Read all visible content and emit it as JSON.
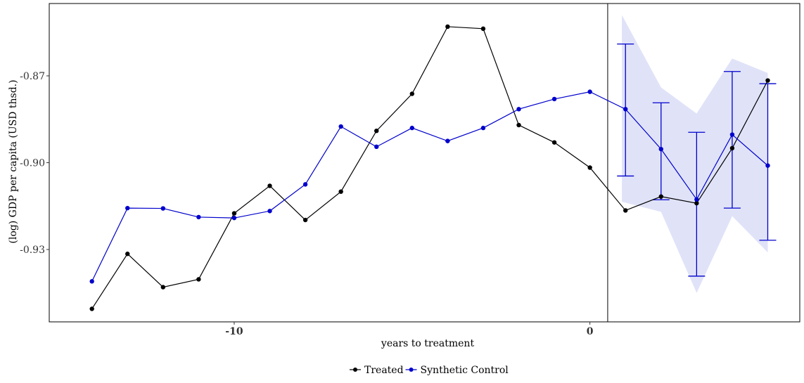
{
  "chart_data": {
    "type": "line",
    "title": "",
    "xlabel": "years to treatment",
    "ylabel": "(log) GDP per capita (USD thsd.)",
    "xlim": [
      -15.2,
      5.9
    ],
    "ylim": [
      -0.955,
      -0.845
    ],
    "x_ticks": [
      {
        "value": -10,
        "label": "-10"
      },
      {
        "value": 0,
        "label": "0"
      }
    ],
    "y_ticks": [
      {
        "value": -0.93,
        "label": "-0.93"
      },
      {
        "value": -0.9,
        "label": "-0.90"
      },
      {
        "value": -0.87,
        "label": "-0.87"
      }
    ],
    "grid": false,
    "treatment_line_x": 0.5,
    "legend_position": "bottom",
    "series": [
      {
        "name": "Treated",
        "color": "#000000",
        "x": [
          -14,
          -13,
          -12,
          -11,
          -10,
          -9,
          -8,
          -7,
          -6,
          -5,
          -4,
          -3,
          -2,
          -1,
          0,
          1,
          2,
          3,
          4,
          5
        ],
        "values": [
          -0.9505,
          -0.9315,
          -0.943,
          -0.9403,
          -0.9175,
          -0.908,
          -0.9198,
          -0.91,
          -0.889,
          -0.8762,
          -0.853,
          -0.8537,
          -0.887,
          -0.893,
          -0.9017,
          -0.9165,
          -0.9117,
          -0.914,
          -0.895,
          -0.8716
        ]
      },
      {
        "name": "Synthetic Control",
        "color": "#0000cc",
        "x": [
          -14,
          -13,
          -12,
          -11,
          -10,
          -9,
          -8,
          -7,
          -6,
          -5,
          -4,
          -3,
          -2,
          -1,
          0,
          1,
          2,
          3,
          4,
          5
        ],
        "values": [
          -0.941,
          -0.9157,
          -0.9158,
          -0.9188,
          -0.9191,
          -0.9167,
          -0.9075,
          -0.8875,
          -0.8945,
          -0.888,
          -0.8925,
          -0.888,
          -0.8815,
          -0.878,
          -0.8755,
          -0.8815,
          -0.8953,
          -0.9127,
          -0.8903,
          -0.901
        ]
      }
    ],
    "error_bars": {
      "color": "#0000cc",
      "x": [
        1,
        2,
        3,
        4,
        5
      ],
      "lower": [
        -0.9046,
        -0.9128,
        -0.9392,
        -0.9157,
        -0.9268
      ],
      "upper": [
        -0.859,
        -0.8793,
        -0.8895,
        -0.8685,
        -0.8727
      ]
    },
    "confidence_band": {
      "color": "#e0e3f8",
      "x": [
        0.9,
        2,
        3,
        4,
        5
      ],
      "lower": [
        -0.9135,
        -0.917,
        -0.945,
        -0.9185,
        -0.931
      ],
      "upper": [
        -0.849,
        -0.874,
        -0.883,
        -0.864,
        -0.869
      ]
    }
  }
}
